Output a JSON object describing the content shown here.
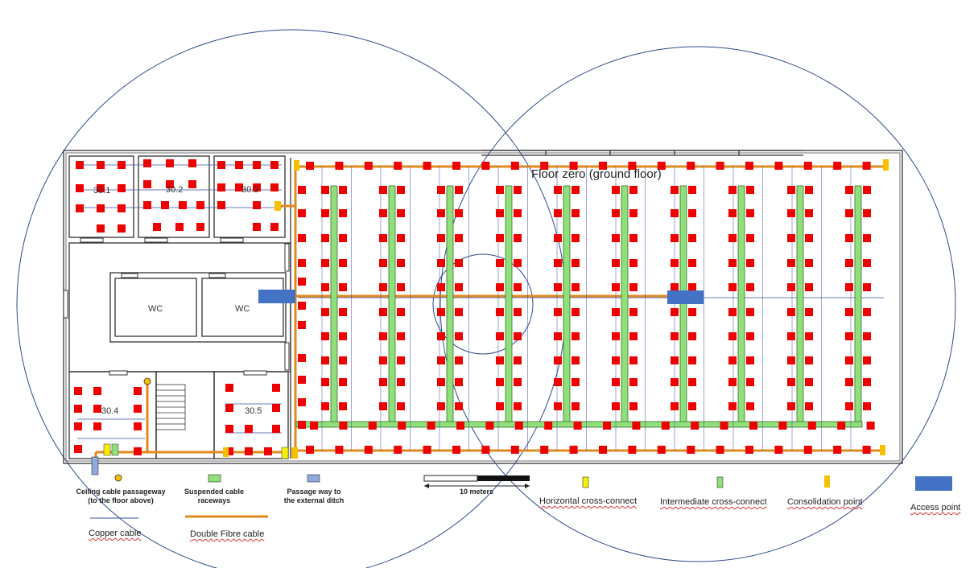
{
  "floor_title": "Floor zero (ground floor)",
  "rooms": {
    "r1": "30.1",
    "r2": "30.2",
    "r3": "30.3",
    "r4": "30.4",
    "r5": "30.5",
    "wc1": "WC",
    "wc2": "WC"
  },
  "scale_bar": {
    "label": "10 meters"
  },
  "legend": {
    "ceiling_passage": "Ceiling cable passageway (to the floor above)",
    "raceways": "Suspended cable raceways",
    "ditch": "Passage way to the external ditch",
    "horizontal_cc": "Horizontal cross-connect",
    "intermediate_cc": "Intermediate cross-connect",
    "consolidation": "Consolidation point",
    "access_point": "Access point",
    "copper": "Copper cable",
    "fibre": "Double Fibre cable"
  },
  "colors": {
    "outlet": "#ee0000",
    "raceway": "#8fe07a",
    "fibre": "#e08a1e",
    "copper": "#3a4fa8",
    "access_point": "#4472c4",
    "horizontal_cc": "#f5f000",
    "consolidation": "#f5c000",
    "coverage_circle": "#2e4a8c"
  }
}
